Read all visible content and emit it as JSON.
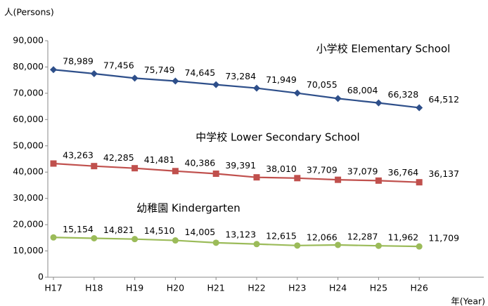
{
  "chart_data": {
    "type": "line",
    "y_label": "人(Persons)",
    "x_label": "年(Year)",
    "categories": [
      "H17",
      "H18",
      "H19",
      "H20",
      "H21",
      "H22",
      "H23",
      "H24",
      "H25",
      "H26"
    ],
    "series": [
      {
        "name": "小学校  Elementary School",
        "color": "#2e4f8a",
        "marker": "diamond",
        "values": [
          78989,
          77456,
          75749,
          74645,
          73284,
          71949,
          70055,
          68004,
          66328,
          64512
        ],
        "value_labels": [
          "78,989",
          "77,456",
          "75,749",
          "74,645",
          "73,284",
          "71,949",
          "70,055",
          "68,004",
          "66,328",
          "64,512"
        ]
      },
      {
        "name": "中学校  Lower Secondary  School",
        "color": "#c0504d",
        "marker": "square",
        "values": [
          43263,
          42285,
          41481,
          40386,
          39391,
          38010,
          37709,
          37079,
          36764,
          36137
        ],
        "value_labels": [
          "43,263",
          "42,285",
          "41,481",
          "40,386",
          "39,391",
          "38,010",
          "37,709",
          "37,079",
          "36,764",
          "36,137"
        ]
      },
      {
        "name": "幼稚園  Kindergarten",
        "color": "#9bbb59",
        "marker": "circle",
        "values": [
          15154,
          14821,
          14510,
          14005,
          13123,
          12615,
          12066,
          12287,
          11962,
          11709
        ],
        "value_labels": [
          "15,154",
          "14,821",
          "14,510",
          "14,005",
          "13,123",
          "12,615",
          "12,066",
          "12,287",
          "11,962",
          "11,709"
        ]
      }
    ],
    "ylim": [
      0,
      90000
    ],
    "yticks": [
      0,
      {
        "value": 10000,
        "label": "10,000"
      },
      {
        "value": 20000,
        "label": "20,000"
      },
      {
        "value": 30000,
        "label": "30,000"
      },
      {
        "value": 40000,
        "label": "40,000"
      },
      {
        "value": 50000,
        "label": "50,000"
      },
      {
        "value": 60000,
        "label": "60,000"
      },
      {
        "value": 70000,
        "label": "70,000"
      },
      {
        "value": 80000,
        "label": "80,000"
      },
      {
        "value": 90000,
        "label": "90,000"
      }
    ],
    "grid": false
  }
}
